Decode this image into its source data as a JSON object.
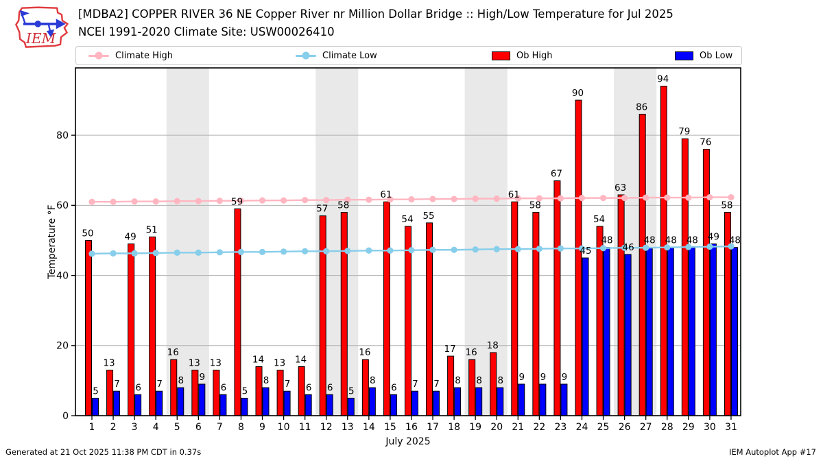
{
  "header": {
    "title_line1": "[MDBA2] COPPER RIVER 36 NE Copper River nr Million Dollar Bridge :: High/Low Temperature for Jul 2025",
    "title_line2": "NCEI 1991-2020 Climate Site: USW00026410",
    "logo_text": "IEM"
  },
  "legend": {
    "items": [
      {
        "label": "Climate High",
        "type": "line",
        "color": "#ffb6c1"
      },
      {
        "label": "Climate Low",
        "type": "line",
        "color": "#87ceeb"
      },
      {
        "label": "Ob High",
        "type": "swatch",
        "color": "#ff0000"
      },
      {
        "label": "Ob Low",
        "type": "swatch",
        "color": "#0000ff"
      }
    ]
  },
  "footer": {
    "left": "Generated at 21 Oct 2025 11:38 PM CDT in 0.37s",
    "right": "IEM Autoplot App #17"
  },
  "chart_data": {
    "type": "bar",
    "title": "[MDBA2] COPPER RIVER 36 NE Copper River nr Million Dollar Bridge :: High/Low Temperature for Jul 2025 — NCEI 1991-2020 Climate Site: USW00026410",
    "xlabel": "July 2025",
    "ylabel": "Temperature °F",
    "ylim": [
      0,
      99
    ],
    "yticks": [
      0,
      20,
      40,
      60,
      80
    ],
    "grid": true,
    "legend_position": "top",
    "days": [
      1,
      2,
      3,
      4,
      5,
      6,
      7,
      8,
      9,
      10,
      11,
      12,
      13,
      14,
      15,
      16,
      17,
      18,
      19,
      20,
      21,
      22,
      23,
      24,
      25,
      26,
      27,
      28,
      29,
      30,
      31
    ],
    "weekend_bands": [
      [
        5,
        6
      ],
      [
        12,
        13
      ],
      [
        19,
        20
      ],
      [
        26,
        27
      ]
    ],
    "colors": {
      "ob_high": "#ff0000",
      "ob_low": "#0000ff",
      "climate_high": "#ffb6c1",
      "climate_low": "#87ceeb",
      "weekend_band": "#e9e9e9",
      "gridline": "#b0b0b0"
    },
    "series": [
      {
        "name": "Ob High",
        "type": "bar",
        "color": "#ff0000",
        "values": [
          50,
          13,
          49,
          51,
          16,
          13,
          13,
          59,
          14,
          13,
          14,
          57,
          58,
          16,
          61,
          54,
          55,
          17,
          16,
          18,
          61,
          58,
          67,
          90,
          54,
          63,
          86,
          94,
          79,
          76,
          58
        ]
      },
      {
        "name": "Ob Low",
        "type": "bar",
        "color": "#0000ff",
        "values": [
          5,
          7,
          6,
          7,
          8,
          9,
          6,
          5,
          8,
          7,
          6,
          6,
          5,
          8,
          6,
          7,
          7,
          8,
          8,
          8,
          9,
          9,
          9,
          45,
          48,
          46,
          48,
          48,
          48,
          49,
          48
        ]
      },
      {
        "name": "Climate High",
        "type": "line",
        "color": "#ffb6c1",
        "values": [
          61.0,
          61.0,
          61.1,
          61.1,
          61.2,
          61.2,
          61.3,
          61.3,
          61.4,
          61.4,
          61.5,
          61.5,
          61.6,
          61.6,
          61.7,
          61.7,
          61.8,
          61.8,
          61.9,
          61.9,
          62.0,
          62.0,
          62.0,
          62.1,
          62.1,
          62.1,
          62.2,
          62.2,
          62.2,
          62.3,
          62.3
        ]
      },
      {
        "name": "Climate Low",
        "type": "line",
        "color": "#87ceeb",
        "values": [
          46.2,
          46.3,
          46.3,
          46.4,
          46.5,
          46.5,
          46.6,
          46.7,
          46.7,
          46.8,
          46.9,
          46.9,
          47.0,
          47.1,
          47.1,
          47.2,
          47.3,
          47.3,
          47.4,
          47.5,
          47.5,
          47.6,
          47.7,
          47.7,
          47.8,
          47.9,
          47.9,
          48.0,
          48.1,
          48.2,
          48.3
        ]
      }
    ]
  }
}
